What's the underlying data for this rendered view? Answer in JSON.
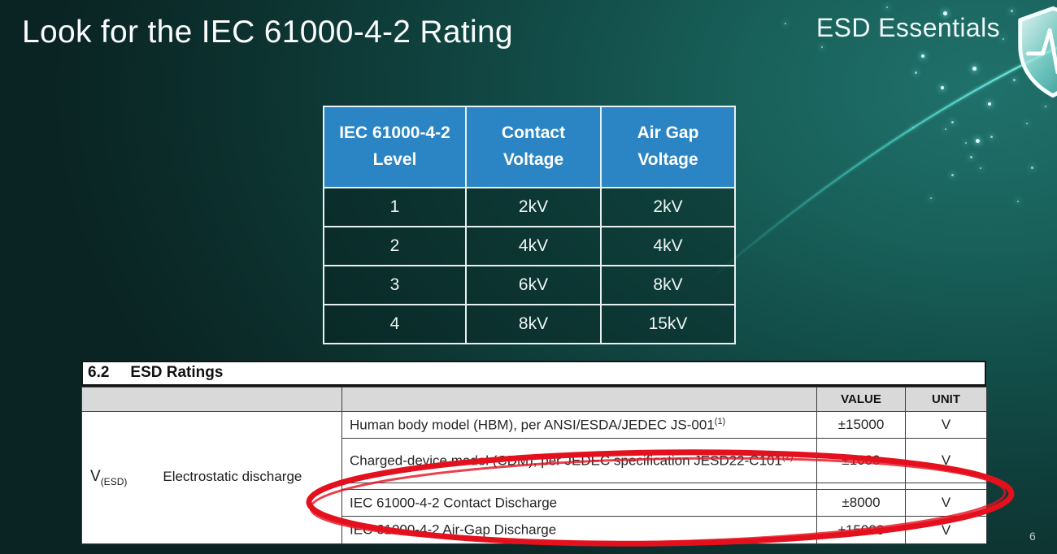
{
  "slide": {
    "title": "Look for the IEC 61000-4-2 Rating",
    "brand": "ESD Essentials",
    "page_number": "6",
    "colors": {
      "background_dark": "#0a2423",
      "background_light": "#20716b",
      "table_header_blue": "#2b85c4",
      "highlight_red": "#e5101e",
      "accent_teal": "#55e2d8"
    }
  },
  "rating_table": {
    "headers": [
      [
        "IEC 61000-4-2",
        "Level"
      ],
      [
        "Contact",
        "Voltage"
      ],
      [
        "Air Gap",
        "Voltage"
      ]
    ],
    "rows": [
      [
        "1",
        "2kV",
        "2kV"
      ],
      [
        "2",
        "4kV",
        "4kV"
      ],
      [
        "3",
        "6kV",
        "8kV"
      ],
      [
        "4",
        "8kV",
        "15kV"
      ]
    ]
  },
  "datasheet": {
    "section": "6.2",
    "section_title": "ESD Ratings",
    "value_header": "VALUE",
    "unit_header": "UNIT",
    "symbol": "V",
    "symbol_sub": "(ESD)",
    "parameter": "Electrostatic discharge",
    "rows": [
      {
        "description": "Human body model (HBM), per ANSI/ESDA/JEDEC JS-001",
        "note": "(1)",
        "value": "±15000",
        "unit": "V"
      },
      {
        "description": "Charged-device model (CDM), per JEDEC specification JESD22-C101",
        "note": "(2)",
        "value": "±1000",
        "unit": "V"
      },
      {
        "description": "IEC 61000-4-2 Contact Discharge",
        "note": "",
        "value": "±8000",
        "unit": "V"
      },
      {
        "description": "IEC 61000-4-2 Air-Gap Discharge",
        "note": "",
        "value": "±15000",
        "unit": "V"
      }
    ]
  }
}
